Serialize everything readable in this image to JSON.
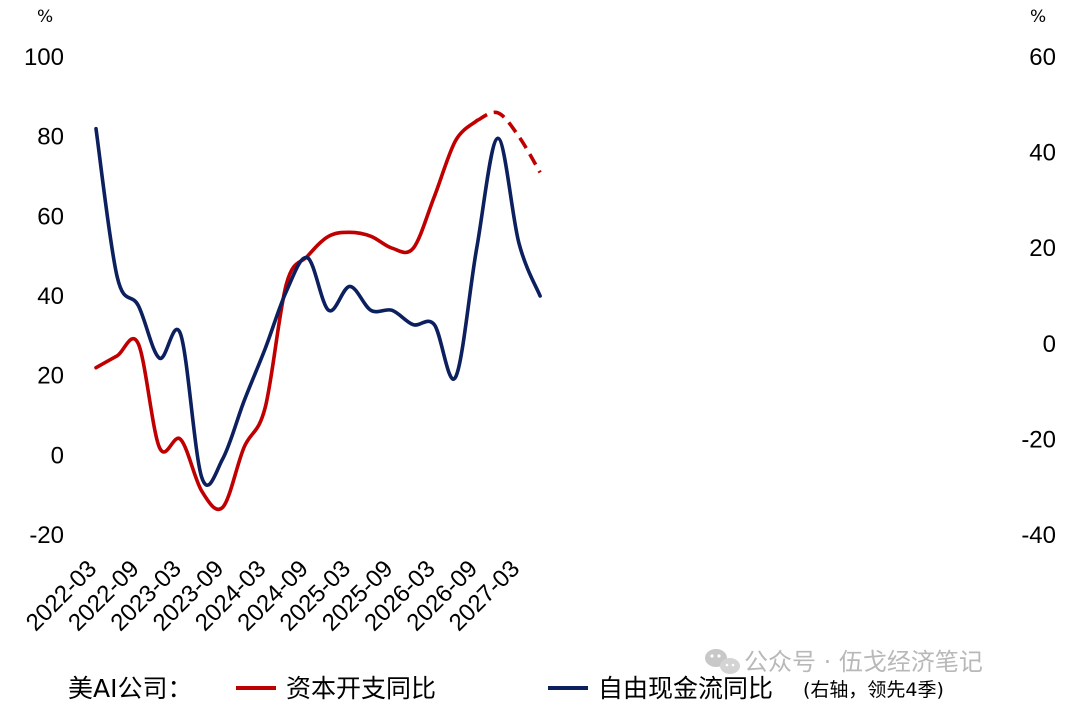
{
  "chart_data": {
    "type": "line",
    "left_axis": {
      "unit": "%",
      "ylim": [
        -20,
        100
      ],
      "ticks": [
        "100",
        "80",
        "60",
        "40",
        "20",
        "0",
        "-20"
      ]
    },
    "right_axis": {
      "unit": "%",
      "ylim": [
        -40,
        60
      ],
      "ticks": [
        "60",
        "40",
        "20",
        "0",
        "-20",
        "-40"
      ]
    },
    "x_tick_labels": [
      "2022-03",
      "2022-09",
      "2023-03",
      "2023-09",
      "2024-03",
      "2024-09",
      "2025-03",
      "2025-09",
      "2026-03",
      "2026-09",
      "2027-03"
    ],
    "series": [
      {
        "name": "资本开支同比",
        "axis": "left",
        "color": "#c00000",
        "solid": [
          [
            "2022-03",
            22
          ],
          [
            "2022-06",
            25
          ],
          [
            "2022-09",
            28
          ],
          [
            "2022-12",
            2
          ],
          [
            "2023-03",
            4
          ],
          [
            "2023-06",
            -9
          ],
          [
            "2023-09",
            -13
          ],
          [
            "2023-12",
            2
          ],
          [
            "2024-03",
            12
          ],
          [
            "2024-06",
            43
          ],
          [
            "2024-09",
            50
          ],
          [
            "2024-12",
            55
          ],
          [
            "2025-03",
            56
          ],
          [
            "2025-06",
            55
          ],
          [
            "2025-09",
            52
          ],
          [
            "2025-12",
            52
          ],
          [
            "2026-03",
            65
          ],
          [
            "2026-06",
            79
          ],
          [
            "2026-09",
            84
          ]
        ],
        "dashed": [
          [
            "2026-09",
            84
          ],
          [
            "2026-12",
            86
          ],
          [
            "2027-03",
            80
          ],
          [
            "2027-06",
            71
          ]
        ]
      },
      {
        "name": "自由现金流同比",
        "note": "(右轴，领先4季)",
        "axis": "right",
        "color": "#0c1f5e",
        "solid": [
          [
            "2022-03",
            45
          ],
          [
            "2022-06",
            14
          ],
          [
            "2022-09",
            8
          ],
          [
            "2022-12",
            -3
          ],
          [
            "2023-03",
            2
          ],
          [
            "2023-06",
            -28
          ],
          [
            "2023-09",
            -24
          ],
          [
            "2023-12",
            -12
          ],
          [
            "2024-03",
            -1
          ],
          [
            "2024-06",
            11
          ],
          [
            "2024-09",
            18
          ],
          [
            "2024-12",
            7
          ],
          [
            "2025-03",
            12
          ],
          [
            "2025-06",
            7
          ],
          [
            "2025-09",
            7
          ],
          [
            "2025-12",
            4
          ],
          [
            "2026-03",
            4
          ],
          [
            "2026-06",
            -7
          ],
          [
            "2026-09",
            20
          ],
          [
            "2026-12",
            43
          ],
          [
            "2027-03",
            21
          ],
          [
            "2027-06",
            10
          ]
        ]
      }
    ],
    "legend": {
      "prefix": "美AI公司：",
      "placement": "bottom"
    }
  },
  "watermark": {
    "icon": "wechat-icon",
    "text": "公众号 · 伍戈经济笔记"
  }
}
